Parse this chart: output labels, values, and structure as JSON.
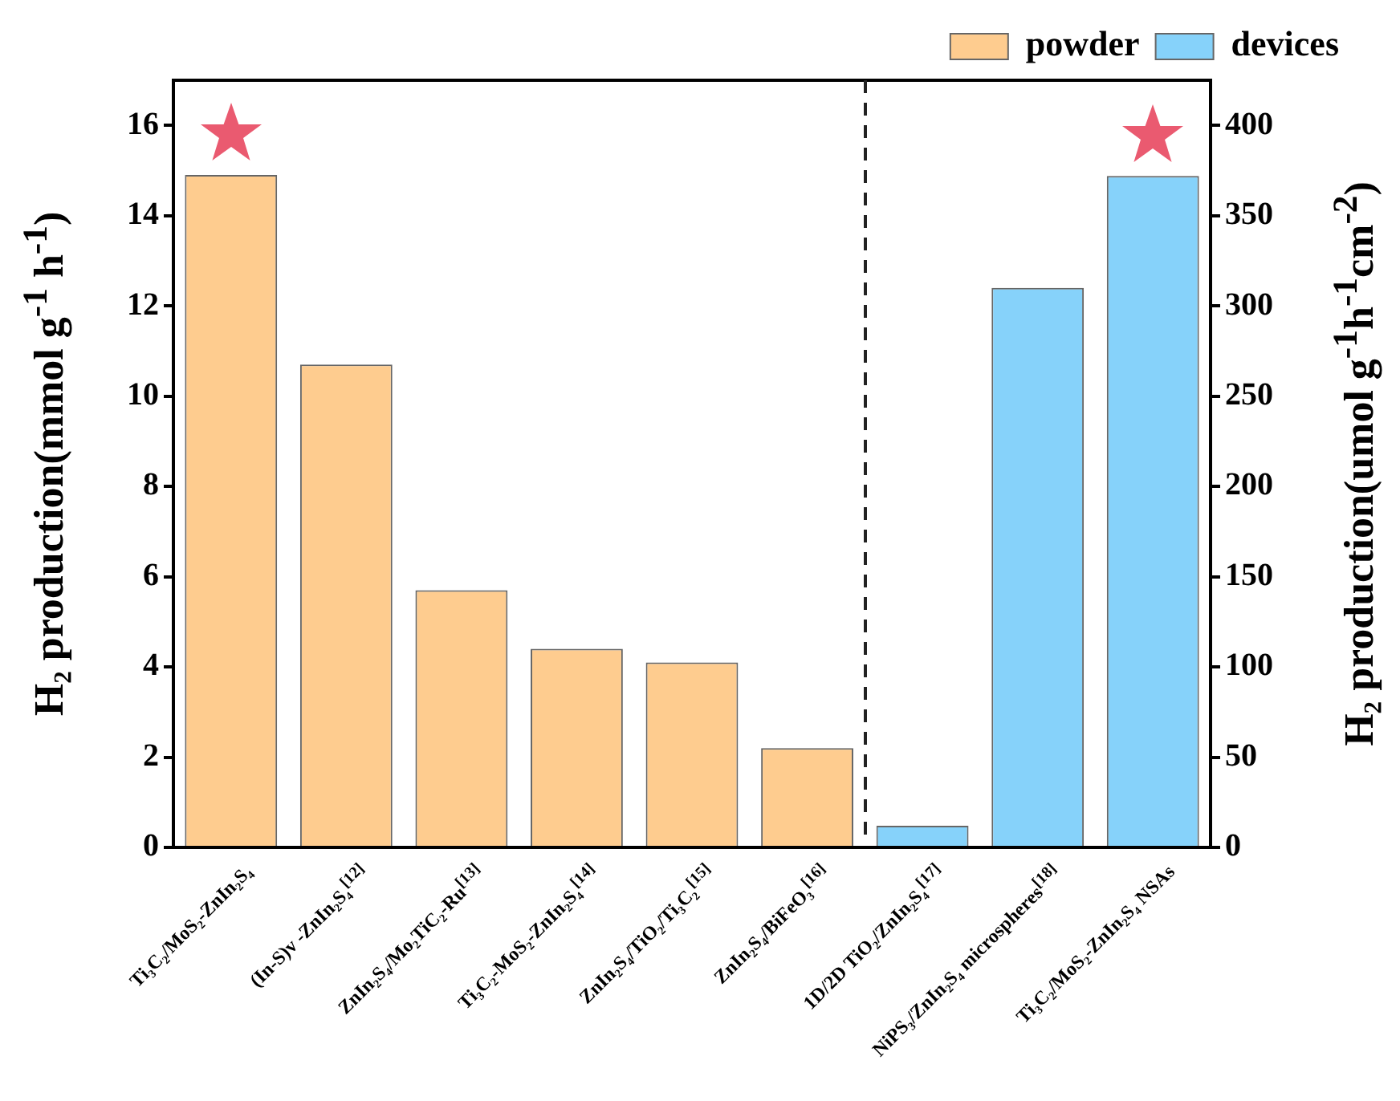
{
  "chart_data": {
    "type": "bar",
    "categories": [
      "Ti₃C₂/MoS₂-ZnIn₂S₄",
      "(In-S)v -ZnIn₂S₄$^{[12]}$",
      "ZnIn₂S₄/Mo₂TiC₂-Ru$^{[13]}$",
      "Ti₃C₂-MoS₂-ZnIn₂S₄$^{[14]}$",
      "ZnIn₂S₄/TiO₂/Ti₃C₂$^{[15]}$",
      "ZnIn₂S₄/BiFeO₃$^{[16]}$",
      "1D/2D TiO₂/ZnIn₂S₄$^{[17]}$",
      "NiPS₃/ZnIn₂S₄ microspheres$^{[18]}$",
      "Ti₃C₂/MoS₂-ZnIn₂S₄ NSAs"
    ],
    "series": [
      {
        "name": "powder",
        "color": "#fecc8f",
        "values": [
          14.9,
          10.7,
          5.7,
          4.4,
          4.1,
          2.2,
          null,
          null,
          null
        ]
      },
      {
        "name": "devices",
        "color": "#86d2fa",
        "axis": "y2",
        "values": [
          null,
          null,
          null,
          null,
          null,
          null,
          12,
          310,
          372
        ]
      }
    ],
    "ylabel": "H₂ production(mmol g$^{-1}$ h$^{-1}$)",
    "y2label": "H₂ production(umol g$^{-1}$h$^{-1}$cm$^{-2}$)",
    "ylim": [
      0,
      17
    ],
    "yticks": [
      0,
      2,
      4,
      6,
      8,
      10,
      12,
      14,
      16
    ],
    "y2lim": [
      0,
      425
    ],
    "y2ticks": [
      0,
      50,
      100,
      150,
      200,
      250,
      300,
      350,
      400
    ],
    "legend": "top right",
    "grid": false
  }
}
